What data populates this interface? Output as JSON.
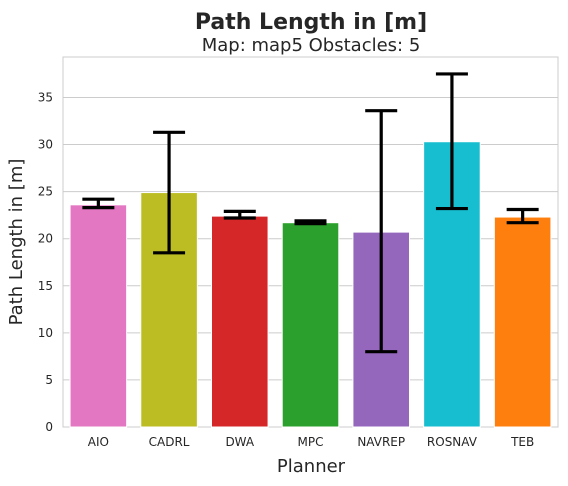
{
  "chart_data": {
    "type": "bar",
    "title": "Path Length in [m]",
    "subtitle": "Map: map5 Obstacles: 5",
    "xlabel": "Planner",
    "ylabel": "Path Length in [m]",
    "categories": [
      "AIO",
      "CADRL",
      "DWA",
      "MPC",
      "NAVREP",
      "ROSNAV",
      "TEB"
    ],
    "values": [
      23.6,
      24.9,
      22.4,
      21.7,
      20.7,
      30.3,
      22.3
    ],
    "error_low": [
      23.3,
      18.5,
      22.2,
      21.6,
      8.0,
      23.2,
      21.7
    ],
    "error_high": [
      24.2,
      31.3,
      22.9,
      21.9,
      33.6,
      37.5,
      23.1
    ],
    "colors": [
      "#e377c2",
      "#bcbd22",
      "#d62728",
      "#2ca02c",
      "#9467bd",
      "#17becf",
      "#ff7f0e"
    ],
    "ylim": [
      0,
      39.3
    ],
    "yticks": [
      0,
      5,
      10,
      15,
      20,
      25,
      30,
      35
    ],
    "grid": "horizontal"
  }
}
